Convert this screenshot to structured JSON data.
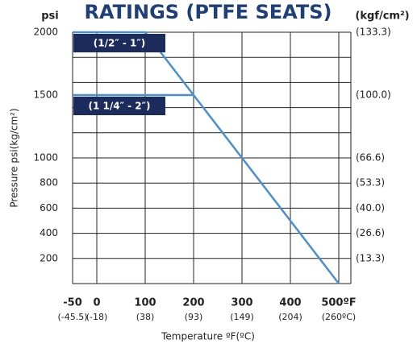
{
  "chart_data": {
    "type": "line",
    "title": "RATINGS (PTFE SEATS)",
    "y_unit_label": "psi",
    "y2_unit_label": "(kgf/cm²)",
    "ylabel": "Pressure psi(kg/cm²)",
    "xlabel": "Temperature ºF(ºC)",
    "xlim": [
      -50,
      525
    ],
    "xticks": [
      -50,
      0,
      100,
      200,
      300,
      400,
      {
        "value": 500,
        "label": "500ºF"
      }
    ],
    "xtick_sublabels": [
      "(-45.5)",
      "(-18)",
      "(38)",
      "(93)",
      "(149)",
      "(204)",
      "(260ºC)"
    ],
    "ylim": [
      0,
      2000
    ],
    "yticks": [
      2000,
      1500,
      1000,
      800,
      600,
      400,
      200
    ],
    "ygrid": [
      0,
      200,
      400,
      600,
      800,
      1000,
      1200,
      1400,
      1600,
      1800,
      2000
    ],
    "y2lim": [
      0,
      133.3
    ],
    "y2ticks": [
      {
        "value": 133.3,
        "label": "(133.3)"
      },
      {
        "value": 100,
        "label": "(100.0)"
      },
      {
        "value": 66.6,
        "label": "(66.6)"
      },
      {
        "value": 53.3,
        "label": "(53.3)"
      },
      {
        "value": 40,
        "label": "(40.0)"
      },
      {
        "value": 26.6,
        "label": "(26.6)"
      },
      {
        "value": 13.3,
        "label": "(13.3)"
      }
    ],
    "grid": true,
    "label_box_color": "#1b2b5c",
    "series": [
      {
        "name": "(1/2″ - 1″)",
        "color": "#4a8fd0",
        "x": [
          -50,
          100,
          500
        ],
        "values": [
          2000,
          2000,
          0
        ]
      },
      {
        "name": "(1 1/4″ - 2″)",
        "color": "#4a8fd0",
        "x": [
          -50,
          200
        ],
        "values": [
          1500,
          1500
        ]
      }
    ]
  }
}
